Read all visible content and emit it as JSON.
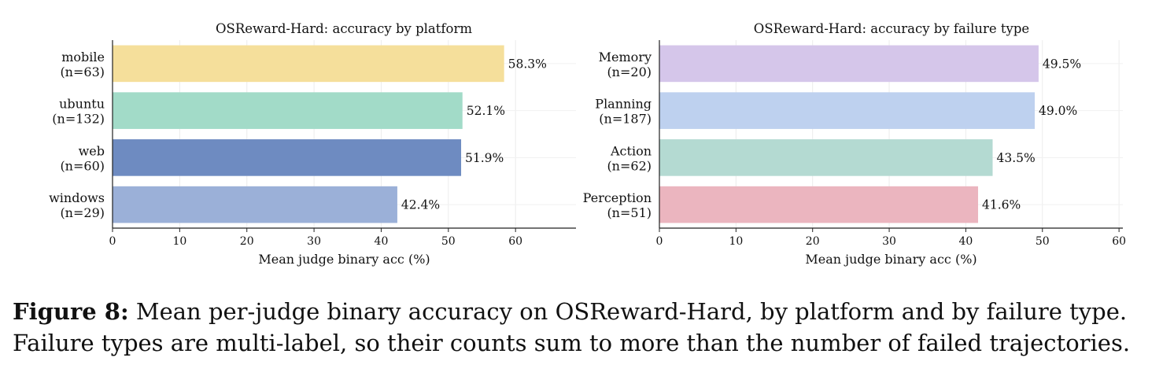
{
  "chart_data": [
    {
      "type": "bar",
      "orientation": "horizontal",
      "title": "OSReward-Hard: accuracy by platform",
      "xlabel": "Mean judge binary acc (%)",
      "ylabel": "",
      "xlim": [
        0,
        69
      ],
      "xticks": [
        0,
        10,
        20,
        30,
        40,
        50,
        60
      ],
      "grid": true,
      "categories": [
        {
          "name": "mobile",
          "n": "(n=63)"
        },
        {
          "name": "ubuntu",
          "n": "(n=132)"
        },
        {
          "name": "web",
          "n": "(n=60)"
        },
        {
          "name": "windows",
          "n": "(n=29)"
        }
      ],
      "values": [
        58.3,
        52.1,
        51.9,
        42.4
      ],
      "value_labels": [
        "58.3%",
        "52.1%",
        "51.9%",
        "42.4%"
      ],
      "colors": [
        "#f5df9b",
        "#a2dbc8",
        "#6e8bc1",
        "#9bb0d8"
      ]
    },
    {
      "type": "bar",
      "orientation": "horizontal",
      "title": "OSReward-Hard: accuracy by failure type",
      "xlabel": "Mean judge binary acc (%)",
      "ylabel": "",
      "xlim": [
        0,
        60.5
      ],
      "xticks": [
        0,
        10,
        20,
        30,
        40,
        50,
        60
      ],
      "grid": true,
      "categories": [
        {
          "name": "Memory",
          "n": "(n=20)"
        },
        {
          "name": "Planning",
          "n": "(n=187)"
        },
        {
          "name": "Action",
          "n": "(n=62)"
        },
        {
          "name": "Perception",
          "n": "(n=51)"
        }
      ],
      "values": [
        49.5,
        49.0,
        43.5,
        41.6
      ],
      "value_labels": [
        "49.5%",
        "49.0%",
        "43.5%",
        "41.6%"
      ],
      "colors": [
        "#d5c6ea",
        "#bed1ef",
        "#b4dad2",
        "#ebb5bf"
      ]
    }
  ],
  "caption": {
    "label": "Figure 8:",
    "text": " Mean per-judge binary accuracy on OSReward-Hard, by platform and by failure type. Failure types are multi-label, so their counts sum to more than the number of failed trajectories."
  }
}
